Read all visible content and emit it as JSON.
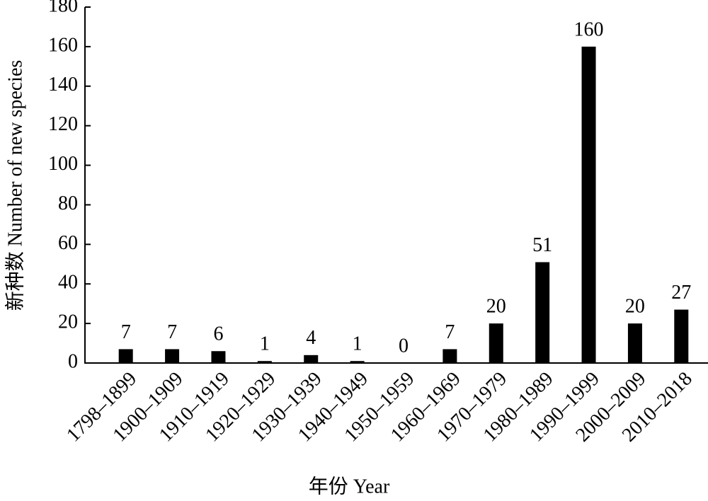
{
  "chart_data": {
    "type": "bar",
    "x_label": "年份 Year",
    "y_label": "新种数 Number of new species",
    "categories": [
      "1798–1899",
      "1900–1909",
      "1910–1919",
      "1920–1929",
      "1930–1939",
      "1940–1949",
      "1950–1959",
      "1960–1969",
      "1970–1979",
      "1980–1989",
      "1990–1999",
      "2000–2009",
      "2010–2018"
    ],
    "values": [
      7,
      7,
      6,
      1,
      4,
      1,
      0,
      7,
      20,
      51,
      160,
      20,
      27
    ],
    "color": "#000000",
    "ylim": [
      0,
      180
    ],
    "yticks": [
      0,
      20,
      40,
      60,
      80,
      100,
      120,
      140,
      160,
      180
    ],
    "grid": false
  }
}
